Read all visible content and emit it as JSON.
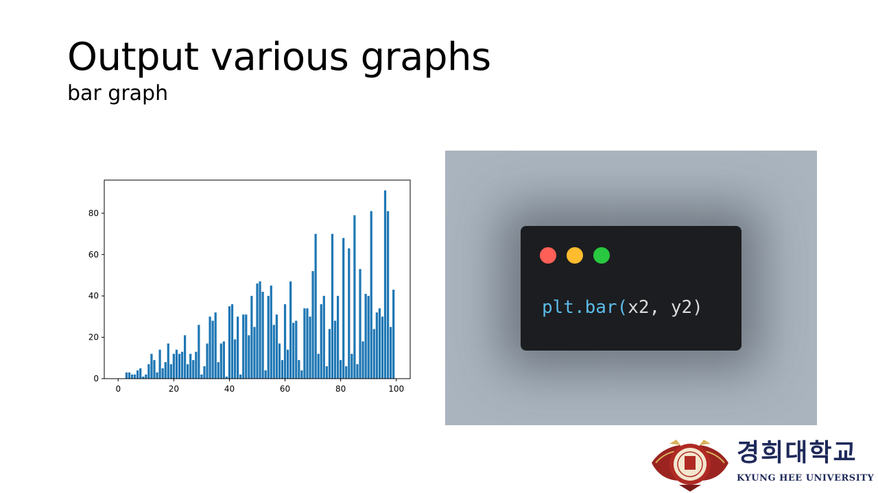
{
  "slide": {
    "title": "Output various graphs",
    "subtitle": "bar graph"
  },
  "code": {
    "fn": "plt.bar(",
    "args": "x2, y2)",
    "dots": [
      "#ff5f57",
      "#febc2e",
      "#28c840"
    ]
  },
  "logo": {
    "korean": "경희대학교",
    "english": "KYUNG HEE UNIVERSITY"
  },
  "chart_data": {
    "type": "bar",
    "color": "#1f77b4",
    "xlim": [
      -5,
      105
    ],
    "ylim": [
      0,
      96
    ],
    "xticks": [
      0,
      20,
      40,
      60,
      80,
      100
    ],
    "yticks": [
      0,
      20,
      40,
      60,
      80
    ],
    "title": "",
    "xlabel": "",
    "ylabel": "",
    "grid": false,
    "x": [
      3,
      4,
      5,
      6,
      7,
      8,
      9,
      10,
      11,
      12,
      13,
      14,
      15,
      16,
      17,
      18,
      19,
      20,
      21,
      22,
      23,
      24,
      25,
      26,
      27,
      28,
      29,
      30,
      31,
      32,
      33,
      34,
      35,
      36,
      37,
      38,
      39,
      40,
      41,
      42,
      43,
      44,
      45,
      46,
      47,
      48,
      49,
      50,
      51,
      52,
      53,
      54,
      55,
      56,
      57,
      58,
      59,
      60,
      61,
      62,
      63,
      64,
      65,
      66,
      67,
      68,
      69,
      70,
      71,
      72,
      73,
      74,
      75,
      76,
      77,
      78,
      79,
      80,
      81,
      82,
      83,
      84,
      85,
      86,
      87,
      88,
      89,
      90,
      91,
      92,
      93,
      94,
      95,
      96,
      97,
      98,
      99
    ],
    "values": [
      3,
      3,
      2,
      2,
      4,
      5,
      1,
      2,
      7,
      12,
      9,
      3,
      14,
      5,
      8,
      17,
      7,
      12,
      14,
      12,
      13,
      21,
      7,
      12,
      9,
      13,
      26,
      2,
      6,
      17,
      30,
      28,
      32,
      8,
      17,
      18,
      1,
      35,
      36,
      19,
      30,
      2,
      31,
      31,
      21,
      40,
      25,
      46,
      47,
      42,
      4,
      40,
      45,
      26,
      31,
      17,
      9,
      36,
      14,
      47,
      27,
      28,
      9,
      4,
      34,
      34,
      30,
      52,
      70,
      12,
      36,
      40,
      6,
      24,
      70,
      28,
      40,
      9,
      68,
      6,
      63,
      12,
      79,
      7,
      53,
      18,
      41,
      40,
      81,
      24,
      32,
      34,
      30,
      91,
      81,
      25,
      43
    ]
  }
}
